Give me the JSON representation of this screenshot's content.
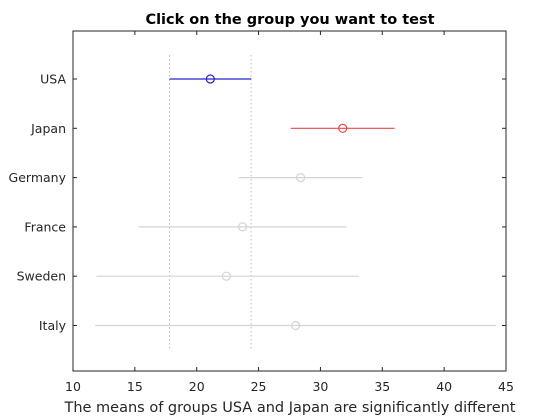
{
  "title": "Click on the group you want to test",
  "xlabel": "The means of groups USA and Japan are significantly different",
  "colors": {
    "selected": "#2525c8",
    "significant": "#e84a4a",
    "neutral": "#d4d4d4",
    "reference_line": "#c0c0c0",
    "axis": "#262626"
  },
  "chart_data": {
    "type": "scatter",
    "title": "Click on the group you want to test",
    "xlabel": "The means of groups USA and Japan are significantly different",
    "ylabel": "",
    "xlim": [
      10,
      45
    ],
    "xticks": [
      10,
      15,
      20,
      25,
      30,
      35,
      40,
      45
    ],
    "grid": false,
    "reference_lines": [
      17.8,
      24.4
    ],
    "groups": [
      {
        "name": "USA",
        "mean": 21.1,
        "lower": 17.8,
        "upper": 24.4,
        "status": "selected"
      },
      {
        "name": "Japan",
        "mean": 31.8,
        "lower": 27.6,
        "upper": 36.0,
        "status": "significant"
      },
      {
        "name": "Germany",
        "mean": 28.4,
        "lower": 23.4,
        "upper": 33.4,
        "status": "neutral"
      },
      {
        "name": "France",
        "mean": 23.7,
        "lower": 15.3,
        "upper": 32.1,
        "status": "neutral"
      },
      {
        "name": "Sweden",
        "mean": 22.4,
        "lower": 11.9,
        "upper": 33.1,
        "status": "neutral"
      },
      {
        "name": "Italy",
        "mean": 28.0,
        "lower": 11.8,
        "upper": 44.2,
        "status": "neutral"
      }
    ]
  }
}
